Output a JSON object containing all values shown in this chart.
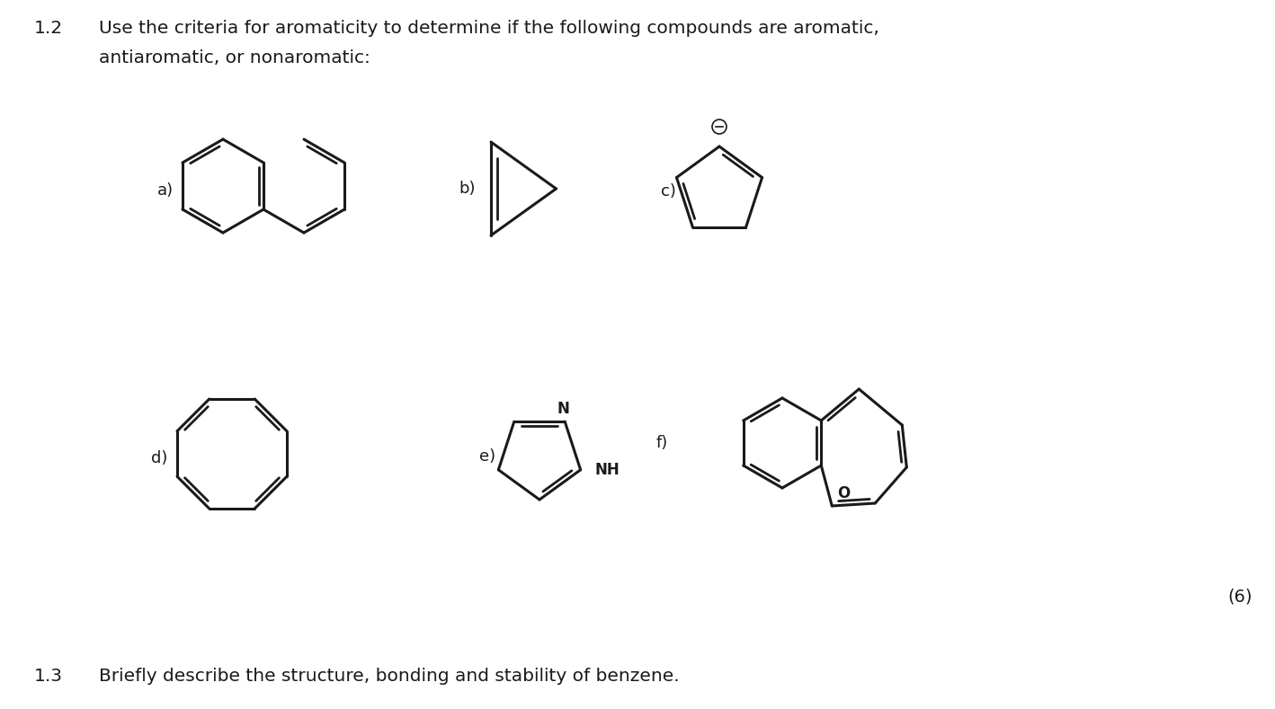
{
  "title_number": "1.2",
  "title_text": "Use the criteria for aromaticity to determine if the following compounds are aromatic,",
  "title_text2": "antiaromatic, or nonaromatic:",
  "subtitle_number": "1.3",
  "subtitle_text": "Briefly describe the structure, bonding and stability of benzene.",
  "score_text": "(6)",
  "bg_color": "#ffffff",
  "text_color": "#1a1a1a",
  "label_color": "#1a1a1a",
  "line_color": "#1a1a1a",
  "line_width": 2.2,
  "font_size_main": 14.5,
  "font_size_label": 13,
  "font_size_score": 14
}
